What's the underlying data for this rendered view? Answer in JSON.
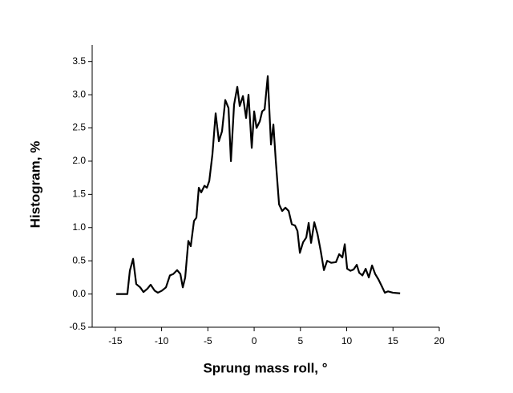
{
  "chart_data": {
    "type": "line",
    "xlabel": "Sprung mass roll, °",
    "ylabel": "Histogram, %",
    "xlim": [
      -17.5,
      20
    ],
    "ylim": [
      -0.5,
      3.75
    ],
    "xticks": [
      -15,
      -10,
      -5,
      0,
      5,
      10,
      15,
      20
    ],
    "yticks": [
      -0.5,
      {
        "value": 0,
        "label": "0.0"
      },
      0.5,
      {
        "value": 1,
        "label": "1.0"
      },
      1.5,
      {
        "value": 2,
        "label": "2.0"
      },
      2.5,
      {
        "value": 3,
        "label": "3.0"
      },
      3.5
    ],
    "grid": false,
    "series": [
      {
        "color": "#000000",
        "x": [
          -14.9,
          -13.7,
          -13.43,
          -13.08,
          -12.74,
          -12.31,
          -11.96,
          -11.53,
          -11.18,
          -10.75,
          -10.4,
          -9.97,
          -9.53,
          -9.1,
          -8.75,
          -8.32,
          -7.97,
          -7.71,
          -7.45,
          -7.11,
          -6.85,
          -6.5,
          -6.24,
          -5.98,
          -5.72,
          -5.37,
          -5.11,
          -4.85,
          -4.51,
          -4.16,
          -3.81,
          -3.47,
          -3.12,
          -2.77,
          -2.51,
          -2.17,
          -1.82,
          -1.56,
          -1.21,
          -0.87,
          -0.61,
          -0.26,
          0,
          0.26,
          0.61,
          0.87,
          1.13,
          1.47,
          1.82,
          2.08,
          2.34,
          2.69,
          3.03,
          3.38,
          3.73,
          4.07,
          4.42,
          4.68,
          4.94,
          5.29,
          5.63,
          5.89,
          6.15,
          6.5,
          6.85,
          7.19,
          7.54,
          7.89,
          8.32,
          8.84,
          9.19,
          9.53,
          9.79,
          10.05,
          10.4,
          10.75,
          11.09,
          11.35,
          11.7,
          12.05,
          12.39,
          12.74,
          13.08,
          13.43,
          13.78,
          14.12,
          14.47,
          14.99,
          15.77
        ],
        "values": [
          0,
          0,
          0.35,
          0.53,
          0.15,
          0.1,
          0.03,
          0.08,
          0.14,
          0.05,
          0.02,
          0.05,
          0.1,
          0.28,
          0.3,
          0.36,
          0.3,
          0.1,
          0.25,
          0.8,
          0.72,
          1.1,
          1.15,
          1.6,
          1.53,
          1.63,
          1.6,
          1.7,
          2.1,
          2.72,
          2.3,
          2.45,
          2.92,
          2.8,
          2.0,
          2.85,
          3.12,
          2.83,
          2.98,
          2.65,
          3.0,
          2.2,
          2.75,
          2.5,
          2.6,
          2.75,
          2.78,
          3.28,
          2.25,
          2.55,
          2.0,
          1.35,
          1.25,
          1.3,
          1.25,
          1.05,
          1.03,
          0.95,
          0.62,
          0.78,
          0.85,
          1.07,
          0.77,
          1.08,
          0.9,
          0.65,
          0.36,
          0.5,
          0.47,
          0.48,
          0.6,
          0.55,
          0.75,
          0.38,
          0.35,
          0.37,
          0.44,
          0.32,
          0.28,
          0.38,
          0.25,
          0.43,
          0.3,
          0.22,
          0.12,
          0.02,
          0.04,
          0.02,
          0.01
        ]
      }
    ]
  }
}
